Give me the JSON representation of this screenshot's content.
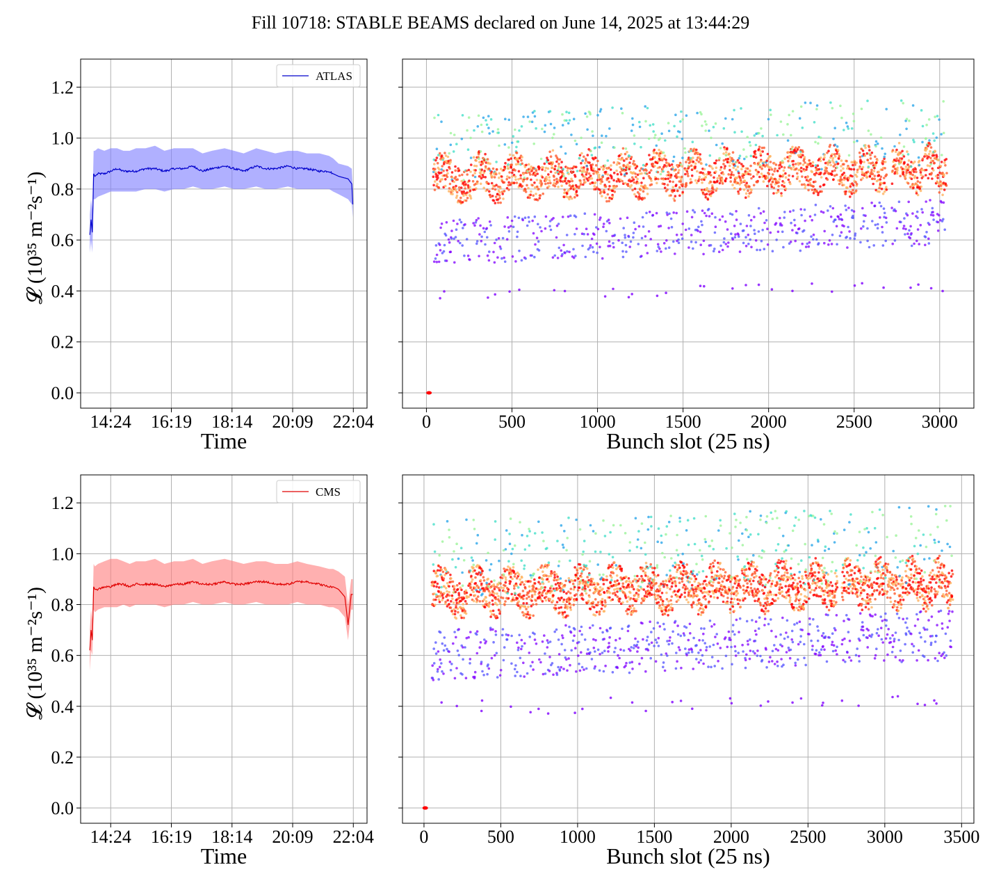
{
  "figure": {
    "title": "Fill 10718: STABLE BEAMS declared on June 14, 2025 at 13:44:29"
  },
  "colors": {
    "atlas": "#0000cc",
    "atlas_band": "#8080ff",
    "cms": "#e00000",
    "cms_band": "#ff8080",
    "grid": "#b0b0b0"
  },
  "chart_data": [
    {
      "id": "atlas-time",
      "type": "line",
      "band": true,
      "xlabel": "Time",
      "ylabel": "𝓛 (10³⁵ m⁻²s⁻¹)",
      "x_ticks": [
        "14:24",
        "16:19",
        "18:14",
        "20:09",
        "22:04"
      ],
      "x_tick_hours": [
        14.4,
        16.3167,
        18.2333,
        20.15,
        22.0667
      ],
      "xlim_hours": [
        13.45,
        22.5
      ],
      "ylim": [
        -0.06,
        1.31
      ],
      "y_ticks": [
        "0.0",
        "0.2",
        "0.4",
        "0.6",
        "0.8",
        "1.0",
        "1.2"
      ],
      "legend": {
        "label": "ATLAS",
        "placement": "upper-right"
      },
      "series": [
        {
          "name": "ATLAS",
          "x_hours": [
            13.74,
            13.78,
            13.82,
            13.86,
            13.9,
            14.0,
            14.2,
            14.4,
            14.6,
            14.8,
            15.0,
            15.2,
            15.5,
            15.8,
            16.1,
            16.4,
            16.7,
            17.0,
            17.3,
            17.6,
            18.0,
            18.3,
            18.6,
            19.0,
            19.3,
            19.6,
            20.0,
            20.3,
            20.6,
            21.0,
            21.3,
            21.43,
            21.6,
            21.9,
            22.02,
            22.05
          ],
          "y": [
            0.62,
            0.68,
            0.63,
            0.86,
            0.85,
            0.86,
            0.86,
            0.87,
            0.88,
            0.87,
            0.87,
            0.87,
            0.88,
            0.88,
            0.87,
            0.88,
            0.88,
            0.89,
            0.87,
            0.88,
            0.89,
            0.88,
            0.87,
            0.89,
            0.88,
            0.88,
            0.89,
            0.88,
            0.88,
            0.87,
            0.87,
            0.86,
            0.85,
            0.84,
            0.82,
            0.74
          ],
          "y_low": [
            0.55,
            0.6,
            0.55,
            0.76,
            0.76,
            0.77,
            0.78,
            0.79,
            0.79,
            0.79,
            0.79,
            0.79,
            0.8,
            0.8,
            0.79,
            0.8,
            0.8,
            0.81,
            0.8,
            0.8,
            0.81,
            0.8,
            0.8,
            0.81,
            0.8,
            0.8,
            0.81,
            0.8,
            0.8,
            0.8,
            0.8,
            0.79,
            0.78,
            0.76,
            0.74,
            0.69
          ],
          "y_high": [
            0.7,
            0.76,
            0.72,
            0.95,
            0.95,
            0.96,
            0.95,
            0.96,
            0.96,
            0.95,
            0.95,
            0.96,
            0.96,
            0.97,
            0.95,
            0.96,
            0.96,
            0.96,
            0.94,
            0.95,
            0.96,
            0.95,
            0.94,
            0.96,
            0.95,
            0.94,
            0.95,
            0.95,
            0.94,
            0.94,
            0.93,
            0.92,
            0.9,
            0.89,
            0.88,
            0.8
          ]
        }
      ]
    },
    {
      "id": "atlas-bunch",
      "type": "scatter",
      "xlabel": "Bunch slot (25 ns)",
      "x_ticks": [
        0,
        500,
        1000,
        1500,
        2000,
        2500,
        3000
      ],
      "xlim": [
        -140,
        3200
      ],
      "ylim": [
        -0.06,
        1.31
      ],
      "n_bunch_slots": 3060,
      "trains": [
        [
          40,
          260
        ],
        [
          270,
          460
        ],
        [
          470,
          680
        ],
        [
          690,
          880
        ],
        [
          890,
          1100
        ],
        [
          1110,
          1290
        ],
        [
          1300,
          1500
        ],
        [
          1510,
          1700
        ],
        [
          1710,
          1900
        ],
        [
          1910,
          2100
        ],
        [
          2110,
          2310
        ],
        [
          2320,
          2520
        ],
        [
          2530,
          2690
        ],
        [
          2720,
          2900
        ],
        [
          2910,
          3040
        ]
      ],
      "band_main": [
        0.78,
        0.92
      ],
      "band_low": [
        0.5,
        0.68
      ],
      "band_high": [
        0.95,
        1.12
      ],
      "outliers_y": [
        0.36,
        0.4
      ],
      "zero_point": [
        15,
        0.0
      ],
      "palette": [
        "#8000ff",
        "#5050ff",
        "#2ca6ea",
        "#46e0c9",
        "#9cf49a",
        "#ffb360",
        "#ff5a2d",
        "#ff0000"
      ]
    },
    {
      "id": "cms-time",
      "type": "line",
      "band": true,
      "xlabel": "Time",
      "ylabel": "𝓛 (10³⁵ m⁻²s⁻¹)",
      "x_ticks": [
        "14:24",
        "16:19",
        "18:14",
        "20:09",
        "22:04"
      ],
      "x_tick_hours": [
        14.4,
        16.3167,
        18.2333,
        20.15,
        22.0667
      ],
      "xlim_hours": [
        13.45,
        22.5
      ],
      "ylim": [
        -0.06,
        1.31
      ],
      "y_ticks": [
        "0.0",
        "0.2",
        "0.4",
        "0.6",
        "0.8",
        "1.0",
        "1.2"
      ],
      "legend": {
        "label": "CMS",
        "placement": "upper-right"
      },
      "series": [
        {
          "name": "CMS",
          "x_hours": [
            13.74,
            13.78,
            13.82,
            13.86,
            13.9,
            14.0,
            14.2,
            14.4,
            14.6,
            14.8,
            15.0,
            15.2,
            15.5,
            15.8,
            16.1,
            16.4,
            16.7,
            17.0,
            17.3,
            17.6,
            18.0,
            18.3,
            18.6,
            19.0,
            19.3,
            19.6,
            20.0,
            20.3,
            20.6,
            21.0,
            21.3,
            21.43,
            21.6,
            21.8,
            21.9,
            22.0,
            22.05
          ],
          "y": [
            0.62,
            0.7,
            0.66,
            0.87,
            0.86,
            0.86,
            0.87,
            0.87,
            0.88,
            0.88,
            0.87,
            0.88,
            0.88,
            0.88,
            0.87,
            0.88,
            0.88,
            0.89,
            0.88,
            0.88,
            0.89,
            0.88,
            0.88,
            0.89,
            0.89,
            0.88,
            0.88,
            0.89,
            0.89,
            0.88,
            0.87,
            0.87,
            0.86,
            0.83,
            0.72,
            0.84,
            0.84
          ],
          "y_low": [
            0.54,
            0.62,
            0.6,
            0.78,
            0.77,
            0.78,
            0.79,
            0.79,
            0.79,
            0.8,
            0.79,
            0.8,
            0.8,
            0.8,
            0.79,
            0.8,
            0.8,
            0.81,
            0.8,
            0.8,
            0.81,
            0.8,
            0.8,
            0.81,
            0.8,
            0.8,
            0.8,
            0.81,
            0.8,
            0.8,
            0.79,
            0.79,
            0.78,
            0.75,
            0.66,
            0.78,
            0.78
          ],
          "y_high": [
            0.7,
            0.78,
            0.74,
            0.96,
            0.95,
            0.96,
            0.97,
            0.98,
            0.98,
            0.97,
            0.96,
            0.97,
            0.97,
            0.98,
            0.96,
            0.97,
            0.97,
            0.98,
            0.96,
            0.97,
            0.98,
            0.97,
            0.96,
            0.97,
            0.97,
            0.96,
            0.96,
            0.97,
            0.96,
            0.95,
            0.94,
            0.94,
            0.93,
            0.91,
            0.8,
            0.9,
            0.9
          ]
        }
      ]
    },
    {
      "id": "cms-bunch",
      "type": "scatter",
      "xlabel": "Bunch slot (25 ns)",
      "x_ticks": [
        0,
        500,
        1000,
        1500,
        2000,
        2500,
        3000,
        3500
      ],
      "xlim": [
        -140,
        3580
      ],
      "ylim": [
        -0.06,
        1.31
      ],
      "n_bunch_slots": 3440,
      "trains": [
        [
          50,
          280
        ],
        [
          290,
          500
        ],
        [
          510,
          730
        ],
        [
          740,
          960
        ],
        [
          970,
          1180
        ],
        [
          1190,
          1400
        ],
        [
          1410,
          1620
        ],
        [
          1630,
          1840
        ],
        [
          1850,
          2060
        ],
        [
          2070,
          2270
        ],
        [
          2280,
          2490
        ],
        [
          2500,
          2690
        ],
        [
          2720,
          2920
        ],
        [
          2930,
          3120
        ],
        [
          3130,
          3310
        ],
        [
          3320,
          3440
        ]
      ],
      "band_main": [
        0.78,
        0.93
      ],
      "band_low": [
        0.5,
        0.7
      ],
      "band_high": [
        0.95,
        1.15
      ],
      "outliers_y": [
        0.36,
        0.42
      ],
      "zero_point": [
        8,
        0.0
      ],
      "palette": [
        "#8000ff",
        "#5050ff",
        "#2ca6ea",
        "#46e0c9",
        "#9cf49a",
        "#ffb360",
        "#ff5a2d",
        "#ff0000"
      ]
    }
  ]
}
